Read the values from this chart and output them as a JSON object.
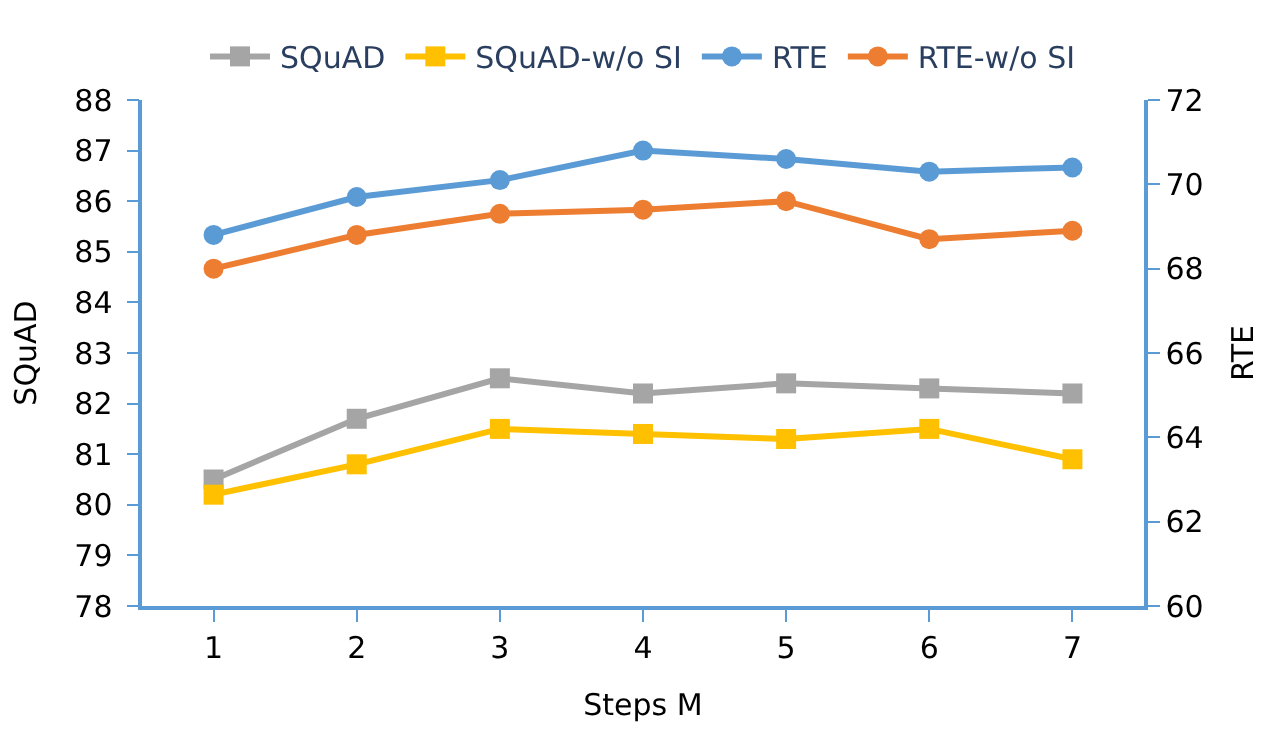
{
  "chart_data": {
    "type": "line",
    "xlabel": "Steps M",
    "ylabel": "SQuAD",
    "y2label": "RTE",
    "categories": [
      "1",
      "2",
      "3",
      "4",
      "5",
      "6",
      "7"
    ],
    "ylim": [
      78,
      88
    ],
    "yticks": [
      78,
      79,
      80,
      81,
      82,
      83,
      84,
      85,
      86,
      87,
      88
    ],
    "y2lim": [
      60,
      72
    ],
    "y2ticks": [
      60,
      62,
      64,
      66,
      68,
      70,
      72
    ],
    "legend": "top",
    "series": [
      {
        "name": "SQuAD",
        "color": "#a5a5a5",
        "marker": "square",
        "values": [
          80.5,
          81.7,
          82.5,
          82.2,
          82.4,
          82.3,
          82.2
        ]
      },
      {
        "name": "SQuAD-w/o SI",
        "color": "#ffc000",
        "marker": "square",
        "values": [
          80.2,
          80.8,
          81.5,
          81.4,
          81.3,
          81.5,
          80.9
        ]
      },
      {
        "name": "RTE",
        "color": "#5b9bd5",
        "marker": "circle",
        "axis": "y2",
        "values": [
          68.8,
          69.7,
          70.1,
          70.8,
          70.6,
          70.3,
          70.4
        ]
      },
      {
        "name": "RTE-w/o SI",
        "color": "#ed7d31",
        "marker": "circle",
        "axis": "y2",
        "values": [
          68.0,
          68.8,
          69.3,
          69.4,
          69.6,
          68.7,
          68.9
        ]
      }
    ]
  }
}
